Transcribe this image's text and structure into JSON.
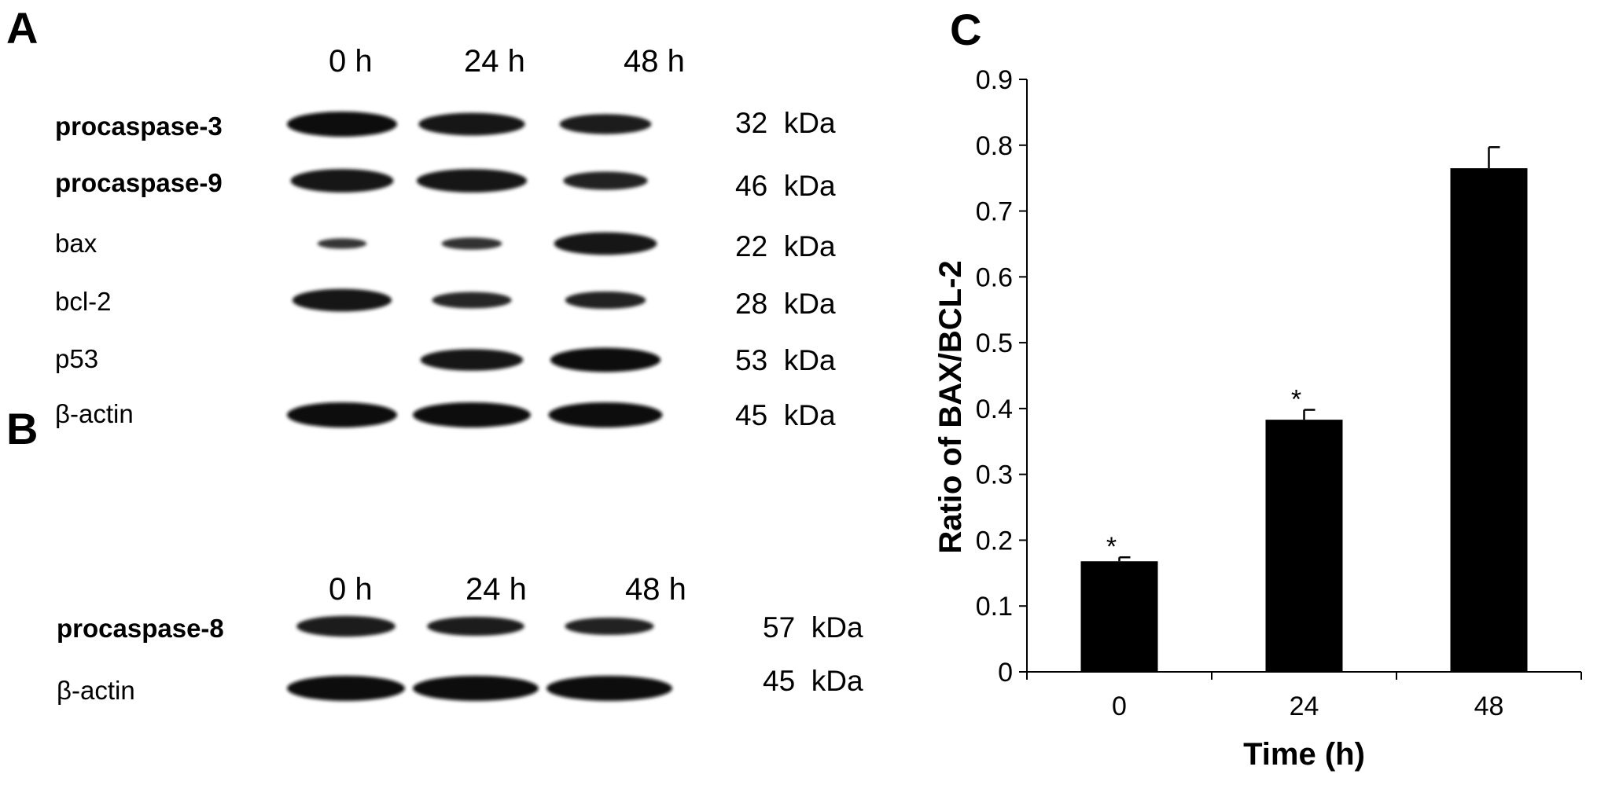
{
  "panels": {
    "a": {
      "letter": "A",
      "lanes": [
        "0 h",
        "24 h",
        "48 h"
      ]
    },
    "b": {
      "letter": "B",
      "lanes": [
        "0 h",
        "24 h",
        "48 h"
      ]
    },
    "c": {
      "letter": "C"
    }
  },
  "blot_a": {
    "rows": [
      {
        "label": "procaspase-3",
        "mw": "32",
        "unit": "kDa",
        "intensity": [
          1.0,
          0.85,
          0.7
        ]
      },
      {
        "label": "procaspase-9",
        "mw": "46",
        "unit": "kDa",
        "intensity": [
          0.9,
          0.9,
          0.6
        ]
      },
      {
        "label": "bax",
        "mw": "22",
        "unit": "kDa",
        "intensity": [
          0.15,
          0.25,
          0.85
        ]
      },
      {
        "label": "bcl-2",
        "mw": "28",
        "unit": "kDa",
        "intensity": [
          0.85,
          0.5,
          0.55
        ]
      },
      {
        "label": "p53",
        "mw": "53",
        "unit": "kDa",
        "intensity": [
          0.0,
          0.8,
          0.95
        ]
      },
      {
        "label": "β-actin",
        "mw": "45",
        "unit": "kDa",
        "intensity": [
          1.0,
          1.0,
          1.0
        ]
      }
    ]
  },
  "blot_b": {
    "rows": [
      {
        "label": "procaspase-8",
        "mw": "57",
        "unit": "kDa",
        "intensity": [
          0.75,
          0.65,
          0.55
        ]
      },
      {
        "label": "β-actin",
        "mw": "45",
        "unit": "kDa",
        "intensity": [
          1.0,
          1.0,
          1.0
        ]
      }
    ]
  },
  "chart_data": {
    "type": "bar",
    "categories": [
      "0",
      "24",
      "48"
    ],
    "values": [
      0.168,
      0.383,
      0.765
    ],
    "error": [
      0.006,
      0.015,
      0.032
    ],
    "significance": [
      "*",
      "*",
      ""
    ],
    "xlabel": "Time (h)",
    "ylabel": "Ratio of BAX/BCL-2",
    "ylim": [
      0,
      0.9
    ],
    "yticks": [
      "0",
      "0.1",
      "0.2",
      "0.3",
      "0.4",
      "0.5",
      "0.6",
      "0.7",
      "0.8",
      "0.9"
    ],
    "bar_color": "#000000",
    "grid": false,
    "legend": "none"
  }
}
